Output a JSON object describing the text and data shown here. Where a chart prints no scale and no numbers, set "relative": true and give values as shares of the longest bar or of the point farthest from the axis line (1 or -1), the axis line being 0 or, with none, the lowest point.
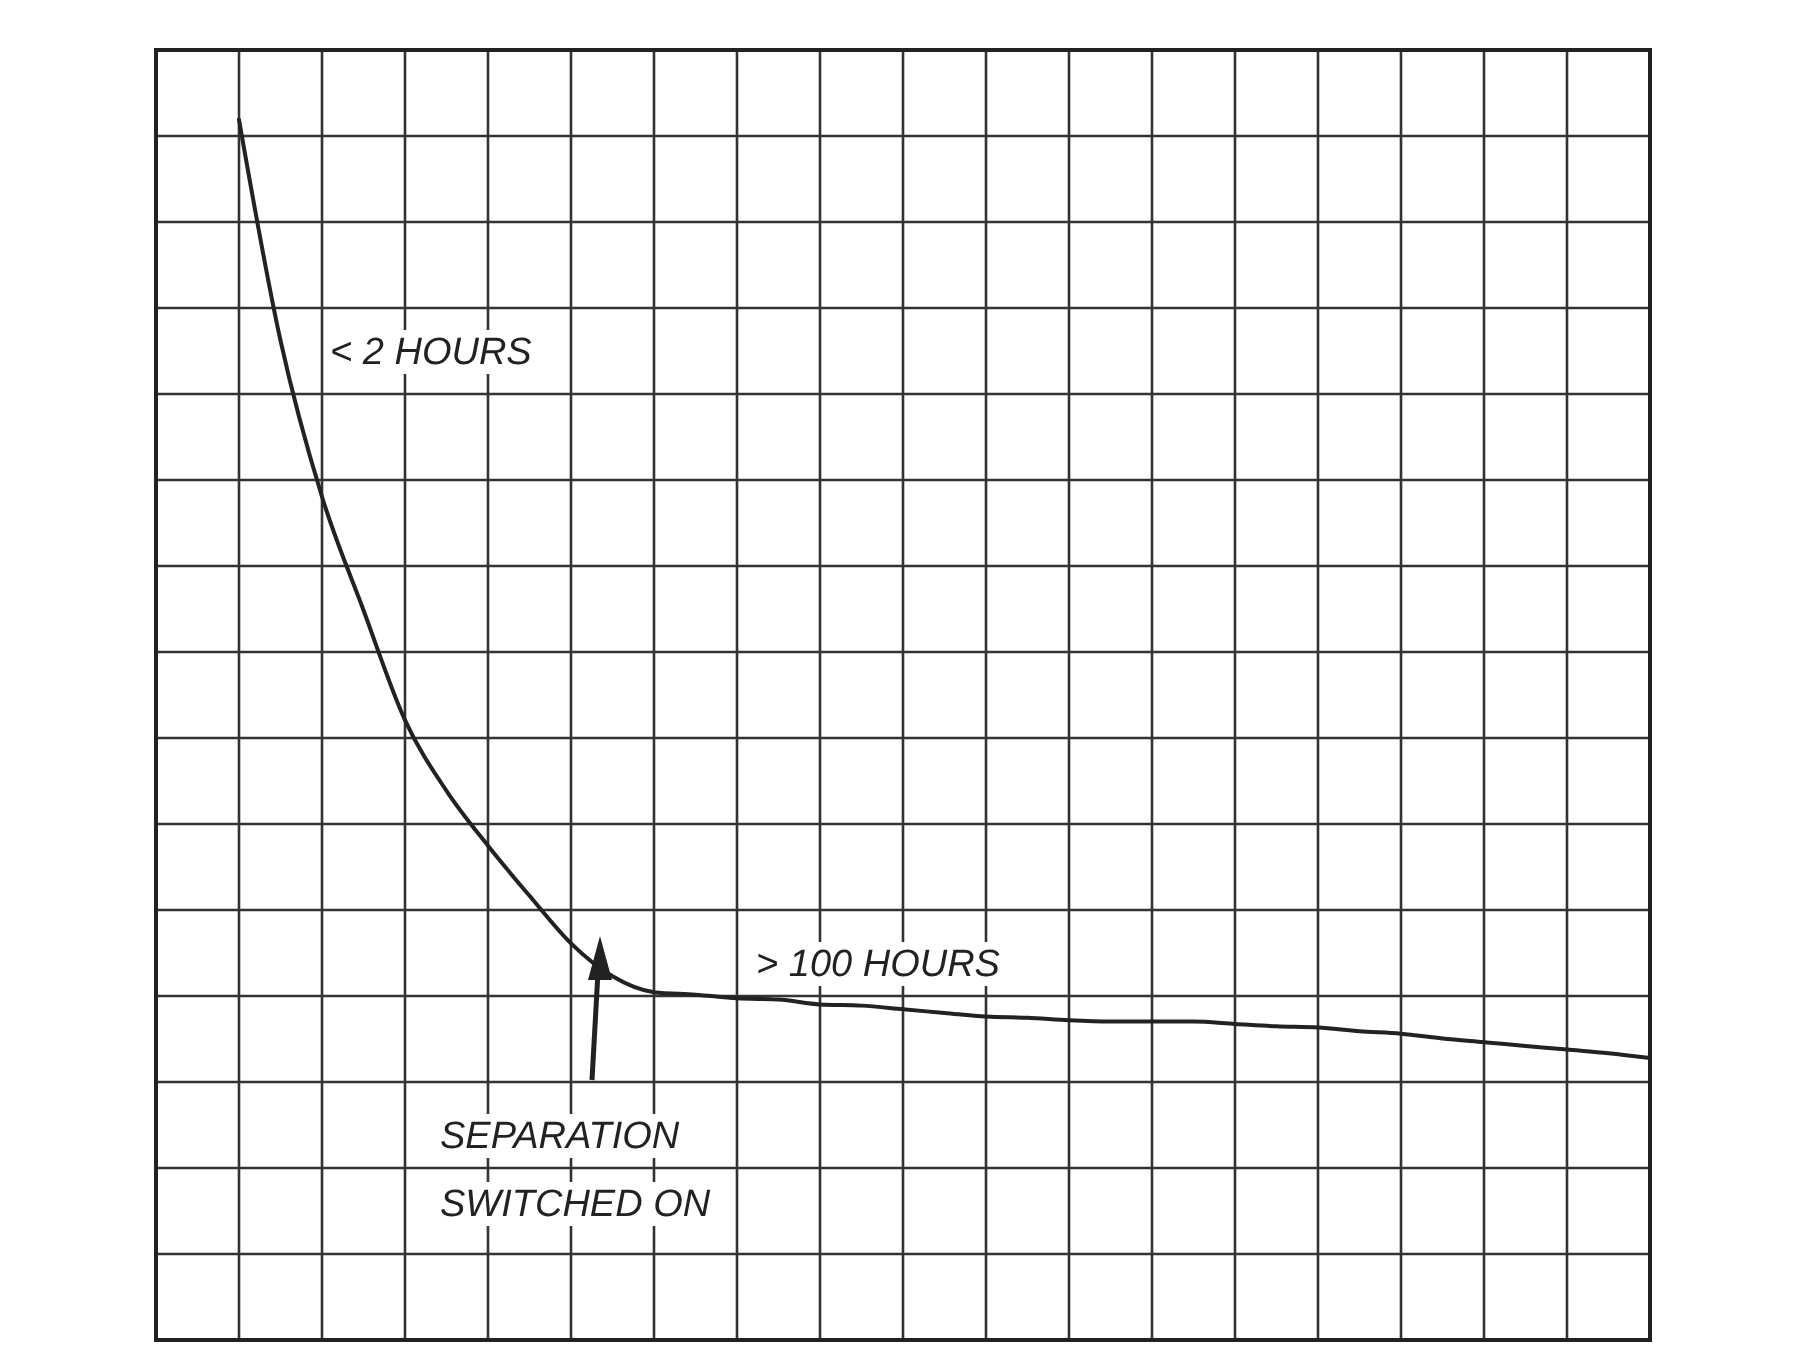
{
  "chart_data": {
    "type": "line",
    "relative": true,
    "grid": true,
    "categories": [
      null,
      null,
      null,
      null,
      null,
      null,
      null,
      null,
      null,
      null,
      null,
      null,
      null,
      null,
      null,
      null,
      null,
      null,
      null,
      null,
      null,
      null,
      null,
      null,
      null,
      null,
      null,
      null,
      null,
      null,
      null,
      null,
      null,
      null,
      null,
      null,
      null
    ],
    "series": [
      {
        "color": "#222222",
        "values": [
          null,
          null,
          1,
          0.819,
          0.691,
          0.598,
          0.508,
          0.45,
          0.405,
          0.364,
          0.325,
          0.298,
          0.285,
          0.283,
          0.28,
          0.279,
          0.275,
          0.274,
          0.271,
          0.268,
          0.265,
          0.264,
          0.262,
          0.261,
          0.261,
          0.261,
          0.259,
          0.257,
          0.256,
          0.253,
          0.251,
          0.247,
          0.244,
          0.241,
          0.238,
          0.235,
          0.231
        ]
      }
    ],
    "annotations": [
      "< 2 HOURS",
      "> 100 HOURS",
      "SEPARATION SWITCHED ON"
    ]
  }
}
